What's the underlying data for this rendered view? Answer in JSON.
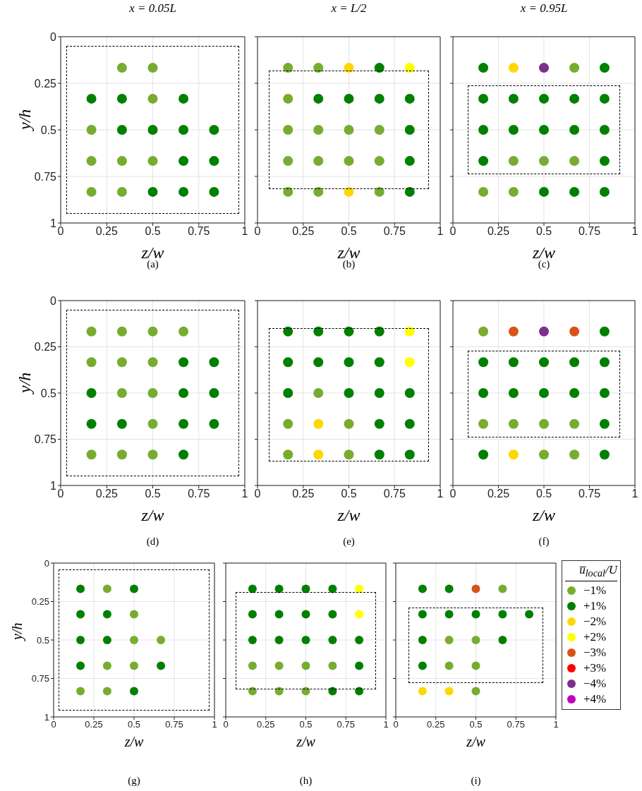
{
  "chart_data": [
    {
      "type": "scatter",
      "title": "x = 0.05L",
      "xlabel": "z/w",
      "ylabel": "y/h",
      "annotations": [
        "(a)"
      ],
      "xlim": [
        0,
        1
      ],
      "ylim": [
        1,
        0
      ],
      "xticks": [
        0,
        0.25,
        0.5,
        0.75,
        1
      ],
      "yticks": [
        0,
        0.25,
        0.5,
        0.75,
        1
      ],
      "grid": true,
      "marker": "circle",
      "series": [
        {
          "color": "#77ac30",
          "x": [
            0.333,
            0.5,
            0.5,
            0.167,
            0.167,
            0.333,
            0.5,
            0.167,
            0.333
          ],
          "values": [
            0.167,
            0.167,
            0.333,
            0.5,
            0.667,
            0.667,
            0.667,
            0.833,
            0.833
          ]
        },
        {
          "color": "#008000",
          "x": [
            0.167,
            0.333,
            0.667,
            0.333,
            0.5,
            0.667,
            0.833,
            0.667,
            0.833,
            0.5,
            0.667,
            0.833
          ],
          "values": [
            0.333,
            0.333,
            0.333,
            0.5,
            0.5,
            0.5,
            0.5,
            0.667,
            0.667,
            0.833,
            0.833,
            0.833
          ]
        }
      ]
    },
    {
      "type": "scatter",
      "title": "x = L/2",
      "xlabel": "z/w",
      "annotations": [
        "(b)"
      ],
      "xlim": [
        0,
        1
      ],
      "ylim": [
        1,
        0
      ],
      "xticks": [
        0,
        0.25,
        0.5,
        0.75,
        1
      ],
      "yticks": [
        0,
        0.25,
        0.5,
        0.75,
        1
      ],
      "tick_labels": "x",
      "grid": true,
      "marker": "circle",
      "series": [
        {
          "color": "#77ac30",
          "x": [
            0.167,
            0.333,
            0.167,
            0.167,
            0.333,
            0.5,
            0.667,
            0.167,
            0.333,
            0.5,
            0.667,
            0.167,
            0.333,
            0.667
          ],
          "values": [
            0.167,
            0.167,
            0.333,
            0.5,
            0.5,
            0.5,
            0.5,
            0.667,
            0.667,
            0.667,
            0.667,
            0.833,
            0.833,
            0.833
          ]
        },
        {
          "color": "#008000",
          "x": [
            0.667,
            0.333,
            0.5,
            0.667,
            0.833,
            0.833,
            0.833,
            0.833
          ],
          "values": [
            0.167,
            0.333,
            0.333,
            0.333,
            0.333,
            0.5,
            0.667,
            0.833
          ]
        },
        {
          "color": "#ffd700",
          "x": [
            0.5,
            0.5
          ],
          "values": [
            0.167,
            0.833
          ]
        },
        {
          "color": "#ffff00",
          "x": [
            0.833
          ],
          "values": [
            0.167
          ]
        }
      ]
    },
    {
      "type": "scatter",
      "title": "x = 0.95L",
      "xlabel": "z/w",
      "annotations": [
        "(c)"
      ],
      "xlim": [
        0,
        1
      ],
      "ylim": [
        1,
        0
      ],
      "xticks": [
        0,
        0.25,
        0.5,
        0.75,
        1
      ],
      "yticks": [
        0,
        0.25,
        0.5,
        0.75,
        1
      ],
      "tick_labels": "x",
      "grid": true,
      "marker": "circle",
      "series": [
        {
          "color": "#77ac30",
          "x": [
            0.667,
            0.333,
            0.5,
            0.667,
            0.167,
            0.333
          ],
          "values": [
            0.167,
            0.667,
            0.667,
            0.667,
            0.833,
            0.833
          ]
        },
        {
          "color": "#008000",
          "x": [
            0.167,
            0.833,
            0.167,
            0.333,
            0.5,
            0.667,
            0.833,
            0.167,
            0.333,
            0.5,
            0.667,
            0.833,
            0.167,
            0.833,
            0.5,
            0.667,
            0.833
          ],
          "values": [
            0.167,
            0.167,
            0.333,
            0.333,
            0.333,
            0.333,
            0.333,
            0.5,
            0.5,
            0.5,
            0.5,
            0.5,
            0.667,
            0.667,
            0.833,
            0.833,
            0.833
          ]
        },
        {
          "color": "#ffd700",
          "x": [
            0.333
          ],
          "values": [
            0.167
          ]
        },
        {
          "color": "#7e2f8e",
          "x": [
            0.5
          ],
          "values": [
            0.167
          ]
        }
      ]
    },
    {
      "type": "scatter",
      "xlabel": "z/w",
      "ylabel": "y/h",
      "annotations": [
        "(d)"
      ],
      "xlim": [
        0,
        1
      ],
      "ylim": [
        1,
        0
      ],
      "xticks": [
        0,
        0.25,
        0.5,
        0.75,
        1
      ],
      "yticks": [
        0,
        0.25,
        0.5,
        0.75,
        1
      ],
      "grid": true,
      "marker": "circle",
      "series": [
        {
          "color": "#77ac30",
          "x": [
            0.167,
            0.333,
            0.5,
            0.667,
            0.167,
            0.333,
            0.5,
            0.333,
            0.5,
            0.5,
            0.167,
            0.333,
            0.5
          ],
          "values": [
            0.167,
            0.167,
            0.167,
            0.167,
            0.333,
            0.333,
            0.333,
            0.5,
            0.5,
            0.667,
            0.833,
            0.833,
            0.833
          ]
        },
        {
          "color": "#008000",
          "x": [
            0.667,
            0.833,
            0.167,
            0.667,
            0.833,
            0.167,
            0.333,
            0.667,
            0.833,
            0.667
          ],
          "values": [
            0.333,
            0.333,
            0.5,
            0.5,
            0.5,
            0.667,
            0.667,
            0.667,
            0.667,
            0.833
          ]
        }
      ]
    },
    {
      "type": "scatter",
      "xlabel": "z/w",
      "annotations": [
        "(e)"
      ],
      "xlim": [
        0,
        1
      ],
      "ylim": [
        1,
        0
      ],
      "xticks": [
        0,
        0.25,
        0.5,
        0.75,
        1
      ],
      "yticks": [
        0,
        0.25,
        0.5,
        0.75,
        1
      ],
      "tick_labels": "x",
      "grid": true,
      "marker": "circle",
      "series": [
        {
          "color": "#77ac30",
          "x": [
            0.333,
            0.167,
            0.5,
            0.167,
            0.5
          ],
          "values": [
            0.5,
            0.667,
            0.667,
            0.833,
            0.833
          ]
        },
        {
          "color": "#008000",
          "x": [
            0.167,
            0.333,
            0.5,
            0.667,
            0.167,
            0.333,
            0.5,
            0.667,
            0.167,
            0.5,
            0.667,
            0.833,
            0.667,
            0.833,
            0.667,
            0.833
          ],
          "values": [
            0.167,
            0.167,
            0.167,
            0.167,
            0.333,
            0.333,
            0.333,
            0.333,
            0.5,
            0.5,
            0.5,
            0.5,
            0.667,
            0.667,
            0.833,
            0.833
          ]
        },
        {
          "color": "#ffd700",
          "x": [
            0.333,
            0.333
          ],
          "values": [
            0.667,
            0.833
          ]
        },
        {
          "color": "#ffff00",
          "x": [
            0.833,
            0.833
          ],
          "values": [
            0.167,
            0.333
          ]
        }
      ]
    },
    {
      "type": "scatter",
      "xlabel": "z/w",
      "annotations": [
        "(f)"
      ],
      "xlim": [
        0,
        1
      ],
      "ylim": [
        1,
        0
      ],
      "xticks": [
        0,
        0.25,
        0.5,
        0.75,
        1
      ],
      "yticks": [
        0,
        0.25,
        0.5,
        0.75,
        1
      ],
      "tick_labels": "x",
      "grid": true,
      "marker": "circle",
      "series": [
        {
          "color": "#77ac30",
          "x": [
            0.167,
            0.167,
            0.333,
            0.5,
            0.667,
            0.5,
            0.667
          ],
          "values": [
            0.167,
            0.667,
            0.667,
            0.667,
            0.667,
            0.833,
            0.833
          ]
        },
        {
          "color": "#008000",
          "x": [
            0.833,
            0.167,
            0.333,
            0.5,
            0.667,
            0.833,
            0.167,
            0.333,
            0.5,
            0.667,
            0.833,
            0.833,
            0.167,
            0.833
          ],
          "values": [
            0.167,
            0.333,
            0.333,
            0.333,
            0.333,
            0.333,
            0.5,
            0.5,
            0.5,
            0.5,
            0.5,
            0.667,
            0.833,
            0.833
          ]
        },
        {
          "color": "#ffd700",
          "x": [
            0.333
          ],
          "values": [
            0.833
          ]
        },
        {
          "color": "#d95319",
          "x": [
            0.333,
            0.667
          ],
          "values": [
            0.167,
            0.167
          ]
        },
        {
          "color": "#7e2f8e",
          "x": [
            0.5
          ],
          "values": [
            0.167
          ]
        }
      ]
    },
    {
      "type": "scatter",
      "xlabel": "z/w",
      "ylabel": "y/h",
      "annotations": [
        "(g)"
      ],
      "xlim": [
        0,
        1
      ],
      "ylim": [
        1,
        0
      ],
      "xticks": [
        0,
        0.25,
        0.5,
        0.75,
        1
      ],
      "yticks": [
        0,
        0.25,
        0.5,
        0.75,
        1
      ],
      "grid": true,
      "marker": "circle",
      "series": [
        {
          "color": "#77ac30",
          "x": [
            0.333,
            0.5,
            0.5,
            0.667,
            0.333,
            0.5,
            0.167,
            0.333
          ],
          "values": [
            0.167,
            0.333,
            0.5,
            0.5,
            0.667,
            0.667,
            0.833,
            0.833
          ]
        },
        {
          "color": "#008000",
          "x": [
            0.167,
            0.5,
            0.167,
            0.333,
            0.167,
            0.333,
            0.167,
            0.667,
            0.5
          ],
          "values": [
            0.167,
            0.167,
            0.333,
            0.333,
            0.5,
            0.5,
            0.667,
            0.667,
            0.833
          ]
        }
      ]
    },
    {
      "type": "scatter",
      "xlabel": "z/w",
      "annotations": [
        "(h)"
      ],
      "xlim": [
        0,
        1
      ],
      "ylim": [
        1,
        0
      ],
      "xticks": [
        0,
        0.25,
        0.5,
        0.75,
        1
      ],
      "yticks": [
        0,
        0.25,
        0.5,
        0.75,
        1
      ],
      "tick_labels": "x",
      "grid": true,
      "marker": "circle",
      "series": [
        {
          "color": "#77ac30",
          "x": [
            0.167,
            0.333,
            0.5,
            0.667,
            0.167,
            0.333,
            0.5
          ],
          "values": [
            0.667,
            0.667,
            0.667,
            0.667,
            0.833,
            0.833,
            0.833
          ]
        },
        {
          "color": "#008000",
          "x": [
            0.167,
            0.333,
            0.5,
            0.667,
            0.167,
            0.333,
            0.5,
            0.667,
            0.167,
            0.333,
            0.5,
            0.667,
            0.833,
            0.833,
            0.667,
            0.833
          ],
          "values": [
            0.167,
            0.167,
            0.167,
            0.167,
            0.333,
            0.333,
            0.333,
            0.333,
            0.5,
            0.5,
            0.5,
            0.5,
            0.5,
            0.667,
            0.833,
            0.833
          ]
        },
        {
          "color": "#ffff00",
          "x": [
            0.833,
            0.833
          ],
          "values": [
            0.167,
            0.333
          ]
        }
      ]
    },
    {
      "type": "scatter",
      "xlabel": "z/w",
      "annotations": [
        "(i)"
      ],
      "legend_title": "u̅$_{local}$/U",
      "legend": "right",
      "xlim": [
        0,
        1
      ],
      "ylim": [
        1,
        0
      ],
      "xticks": [
        0,
        0.25,
        0.5,
        0.75,
        1
      ],
      "yticks": [
        0,
        0.25,
        0.5,
        0.75,
        1
      ],
      "tick_labels": "x",
      "grid": true,
      "marker": "circle",
      "series": [
        {
          "name": "−1%",
          "color": "#77ac30",
          "x": [
            0.667,
            0.333,
            0.5,
            0.333,
            0.5,
            0.5
          ],
          "values": [
            0.167,
            0.5,
            0.5,
            0.667,
            0.667,
            0.833
          ]
        },
        {
          "name": "+1%",
          "color": "#008000",
          "x": [
            0.167,
            0.333,
            0.167,
            0.333,
            0.5,
            0.667,
            0.833,
            0.167,
            0.667,
            0.167
          ],
          "values": [
            0.167,
            0.167,
            0.333,
            0.333,
            0.333,
            0.333,
            0.333,
            0.5,
            0.5,
            0.667
          ]
        },
        {
          "name": "−2%",
          "color": "#ffd700",
          "x": [
            0.167,
            0.333
          ],
          "values": [
            0.833,
            0.833
          ]
        },
        {
          "name": "+2%",
          "color": "#ffff00"
        },
        {
          "name": "−3%",
          "color": "#d95319",
          "x": [
            0.5
          ],
          "values": [
            0.167
          ]
        },
        {
          "name": "+3%",
          "color": "#ff0000"
        },
        {
          "name": "−4%",
          "color": "#7e2f8e"
        },
        {
          "name": "+4%",
          "color": "#c000c0"
        }
      ]
    }
  ]
}
